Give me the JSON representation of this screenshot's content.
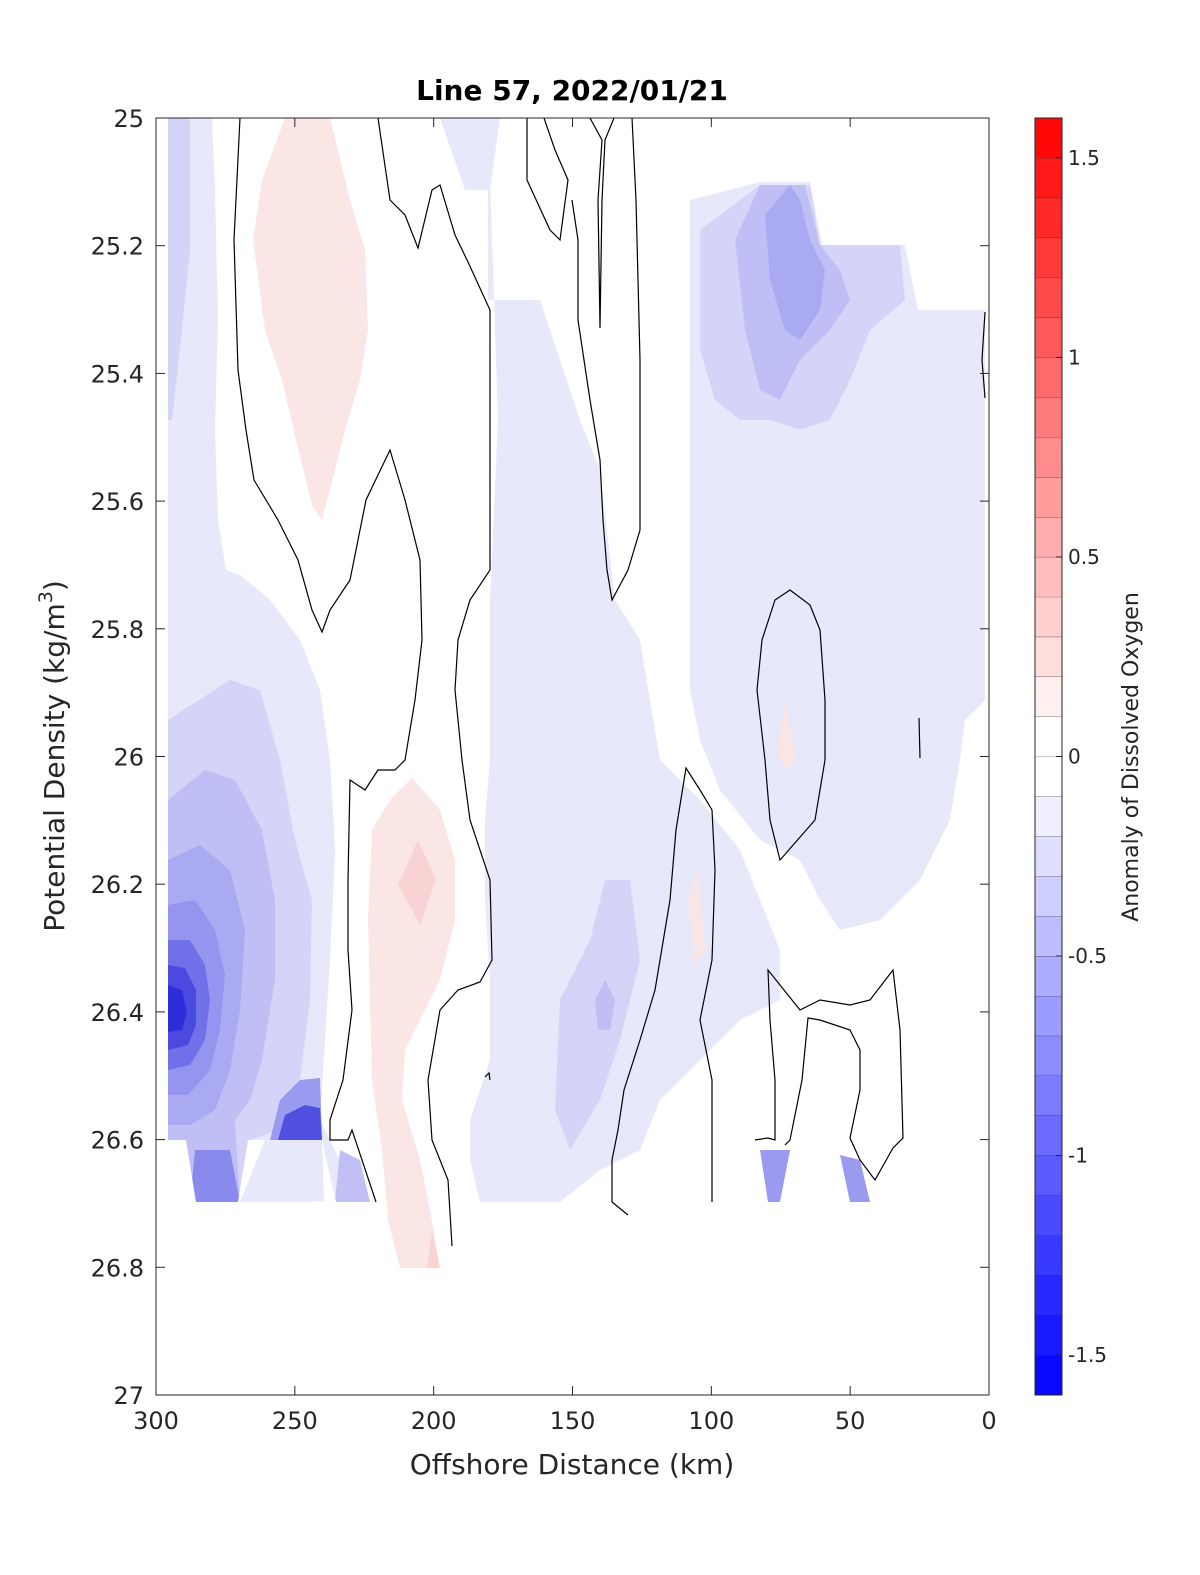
{
  "chart_data": {
    "type": "heatmap",
    "subtype": "filled-contour",
    "title": "Line 57, 2022/01/21",
    "xlabel": "Offshore Distance (km)",
    "ylabel": "Potential Density (kg/m",
    "ylabel_sup": "3",
    "ylabel_end": ")",
    "xlim": [
      300,
      0
    ],
    "ylim": [
      25,
      27
    ],
    "x_reversed": true,
    "y_reversed": true,
    "xticks": [
      300,
      250,
      200,
      150,
      100,
      50,
      0
    ],
    "yticks": [
      25,
      25.2,
      25.4,
      25.6,
      25.8,
      26,
      26.2,
      26.4,
      26.6,
      26.8,
      27
    ],
    "ytick_labels": [
      "25",
      "25.2",
      "25.4",
      "25.6",
      "25.8",
      "26",
      "26.2",
      "26.4",
      "26.6",
      "26.8",
      "27"
    ],
    "colorbar": {
      "label": "Anomaly of Dissolved Oxygen",
      "clim": [
        -1.6,
        1.6
      ],
      "step": 0.1,
      "ticks": [
        -1.5,
        -1,
        -0.5,
        0,
        0.5,
        1,
        1.5
      ],
      "tick_labels": [
        "-1.5",
        "-1",
        "-0.5",
        "0",
        "0.5",
        "1",
        "1.5"
      ],
      "negative_color": "#0000ff",
      "positive_color": "#ff0000",
      "neutral_color": "#ffffff"
    },
    "zero_contour_color": "#000000",
    "regions": [
      {
        "name": "offshore-low-anomaly",
        "x": 290,
        "y": 26.4,
        "value": -1.3
      },
      {
        "name": "bottom-left-low",
        "x": 250,
        "y": 26.6,
        "value": -1.0
      },
      {
        "name": "upper-left-low",
        "x": 295,
        "y": 25.3,
        "value": -0.2
      },
      {
        "name": "positive-tongue-upper",
        "x": 240,
        "y": 25.3,
        "value": 0.15
      },
      {
        "name": "positive-tongue-mid",
        "x": 205,
        "y": 26.2,
        "value": 0.2
      },
      {
        "name": "nearshore-low-upper",
        "x": 70,
        "y": 25.3,
        "value": -0.4
      },
      {
        "name": "central-low-band",
        "x": 145,
        "y": 26.3,
        "value": -0.3
      },
      {
        "name": "nearshore-positive-spot",
        "x": 75,
        "y": 25.95,
        "value": 0.15
      }
    ]
  }
}
